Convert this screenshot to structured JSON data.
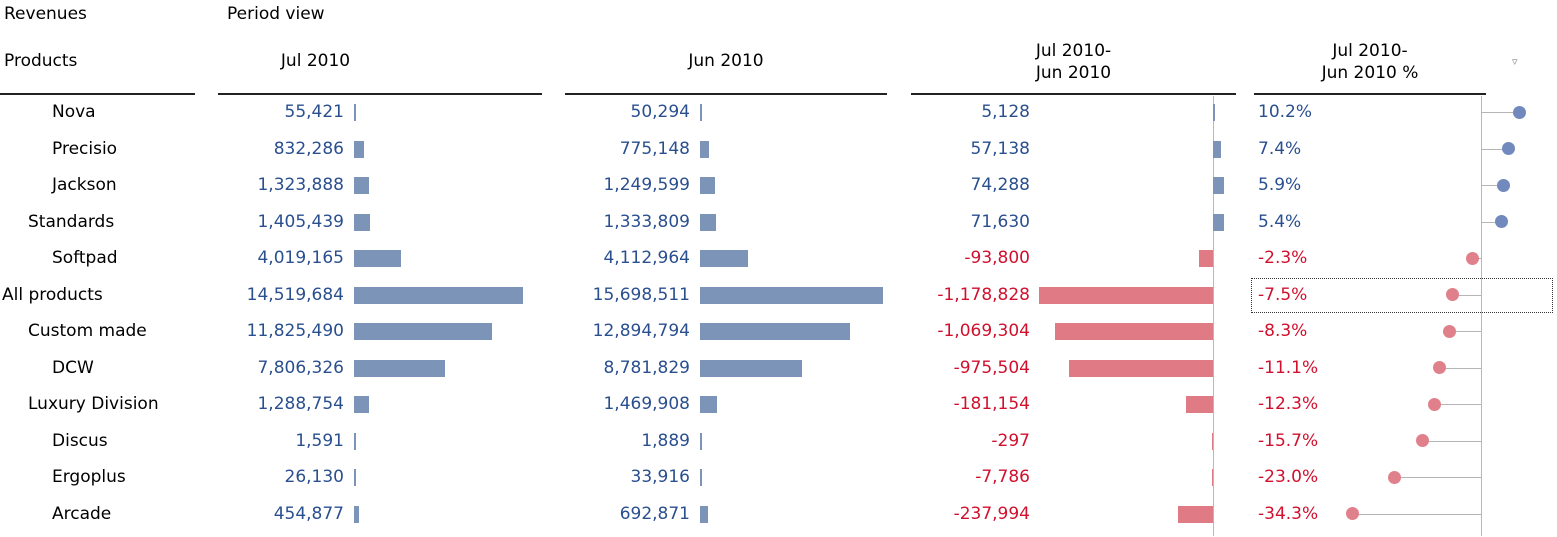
{
  "header": {
    "measure": "Revenues",
    "view": "Period view",
    "dimension": "Products",
    "col1": "Jul 2010",
    "col2": "Jun 2010",
    "col3_line1": "Jul 2010-",
    "col3_line2": "Jun 2010",
    "col4_line1": "Jul 2010-",
    "col4_line2": "Jun 2010 %",
    "sort_icon": "sort-triangle-icon"
  },
  "colors": {
    "positive_text": "#2a4f8f",
    "negative_text": "#d1102e",
    "positive_bar": "#7c94b8",
    "negative_bar": "#e07a84"
  },
  "chart_data": {
    "type": "table",
    "columns": [
      "Jul 2010",
      "Jun 2010",
      "Jul 2010-Jun 2010",
      "Jul 2010-Jun 2010 %"
    ],
    "rows": [
      {
        "product": "Nova",
        "indent": 2,
        "jul": 55421,
        "jun": 50294,
        "delta": 5128,
        "pct": 10.2,
        "jul_label": "55,421",
        "jun_label": "50,294",
        "delta_label": "5,128",
        "pct_label": "10.2%"
      },
      {
        "product": "Precisio",
        "indent": 2,
        "jul": 832286,
        "jun": 775148,
        "delta": 57138,
        "pct": 7.4,
        "jul_label": "832,286",
        "jun_label": "775,148",
        "delta_label": "57,138",
        "pct_label": "7.4%"
      },
      {
        "product": "Jackson",
        "indent": 2,
        "jul": 1323888,
        "jun": 1249599,
        "delta": 74288,
        "pct": 5.9,
        "jul_label": "1,323,888",
        "jun_label": "1,249,599",
        "delta_label": "74,288",
        "pct_label": "5.9%"
      },
      {
        "product": "Standards",
        "indent": 1,
        "jul": 1405439,
        "jun": 1333809,
        "delta": 71630,
        "pct": 5.4,
        "jul_label": "1,405,439",
        "jun_label": "1,333,809",
        "delta_label": "71,630",
        "pct_label": "5.4%"
      },
      {
        "product": "Softpad",
        "indent": 2,
        "jul": 4019165,
        "jun": 4112964,
        "delta": -93800,
        "pct": -2.3,
        "jul_label": "4,019,165",
        "jun_label": "4,112,964",
        "delta_label": "-93,800",
        "pct_label": "-2.3%"
      },
      {
        "product": "All products",
        "indent": 0,
        "jul": 14519684,
        "jun": 15698511,
        "delta": -1178828,
        "pct": -7.5,
        "jul_label": "14,519,684",
        "jun_label": "15,698,511",
        "delta_label": "-1,178,828",
        "pct_label": "-7.5%",
        "focused": true
      },
      {
        "product": "Custom made",
        "indent": 1,
        "jul": 11825490,
        "jun": 12894794,
        "delta": -1069304,
        "pct": -8.3,
        "jul_label": "11,825,490",
        "jun_label": "12,894,794",
        "delta_label": "-1,069,304",
        "pct_label": "-8.3%"
      },
      {
        "product": "DCW",
        "indent": 2,
        "jul": 7806326,
        "jun": 8781829,
        "delta": -975504,
        "pct": -11.1,
        "jul_label": "7,806,326",
        "jun_label": "8,781,829",
        "delta_label": "-975,504",
        "pct_label": "-11.1%"
      },
      {
        "product": "Luxury Division",
        "indent": 1,
        "jul": 1288754,
        "jun": 1469908,
        "delta": -181154,
        "pct": -12.3,
        "jul_label": "1,288,754",
        "jun_label": "1,469,908",
        "delta_label": "-181,154",
        "pct_label": "-12.3%"
      },
      {
        "product": "Discus",
        "indent": 2,
        "jul": 1591,
        "jun": 1889,
        "delta": -297,
        "pct": -15.7,
        "jul_label": "1,591",
        "jun_label": "1,889",
        "delta_label": "-297",
        "pct_label": "-15.7%"
      },
      {
        "product": "Ergoplus",
        "indent": 2,
        "jul": 26130,
        "jun": 33916,
        "delta": -7786,
        "pct": -23.0,
        "jul_label": "26,130",
        "jun_label": "33,916",
        "delta_label": "-7,786",
        "pct_label": "-23.0%"
      },
      {
        "product": "Arcade",
        "indent": 2,
        "jul": 454877,
        "jun": 692871,
        "delta": -237994,
        "pct": -34.3,
        "jul_label": "454,877",
        "jun_label": "692,871",
        "delta_label": "-237,994",
        "pct_label": "-34.3%"
      }
    ]
  }
}
